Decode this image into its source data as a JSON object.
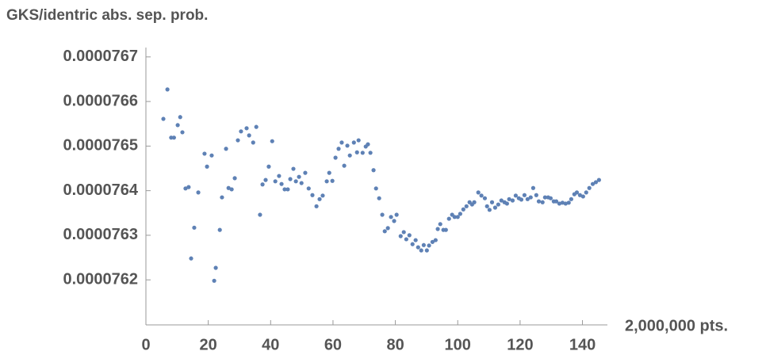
{
  "chart_data": {
    "type": "scatter",
    "title": "GKS/identric abs. sep. prob.",
    "x_label": "2,000,000 pts.",
    "color": "#5e81b5",
    "xlim": [
      0,
      148
    ],
    "xticks": [
      0,
      20,
      40,
      60,
      80,
      100,
      120,
      140
    ],
    "ylim": [
      7.6099e-05,
      7.6721e-05
    ],
    "yticks": [
      {
        "value": 7.62e-05,
        "label": "0.0000762"
      },
      {
        "value": 7.63e-05,
        "label": "0.0000763"
      },
      {
        "value": 7.64e-05,
        "label": "0.0000764"
      },
      {
        "value": 7.65e-05,
        "label": "0.0000765"
      },
      {
        "value": 7.66e-05,
        "label": "0.0000766"
      },
      {
        "value": 7.67e-05,
        "label": "0.0000767"
      }
    ],
    "x": [
      5.6,
      6.9,
      8.1,
      9,
      10.2,
      11,
      11.7,
      12.7,
      13.7,
      14.5,
      15.5,
      16.8,
      18.8,
      19.6,
      21.1,
      21.9,
      22.4,
      23.7,
      24.4,
      25.7,
      26.5,
      27.5,
      28.5,
      29.5,
      30.5,
      32.3,
      33.1,
      34.4,
      35.4,
      36.6,
      37.4,
      38.4,
      39.4,
      40.5,
      41.5,
      42.7,
      43.5,
      44.5,
      45.5,
      46.3,
      47.3,
      48.1,
      49.1,
      49.9,
      51.1,
      52.2,
      53.4,
      54.7,
      55.7,
      56.7,
      58,
      58.8,
      59.8,
      60.8,
      61.8,
      62.8,
      63.6,
      64.6,
      65.4,
      66.7,
      67.7,
      68.2,
      69.5,
      70.5,
      71.2,
      72,
      73,
      73.8,
      74.8,
      75.8,
      76.6,
      77.6,
      78.6,
      79.6,
      80.4,
      81.7,
      82.7,
      83.5,
      84.5,
      85.5,
      86.5,
      87.3,
      88.3,
      89.1,
      90.1,
      90.8,
      91.9,
      92.9,
      93.6,
      94.4,
      95.4,
      96.2,
      97.2,
      98.2,
      99,
      100,
      100.8,
      101.8,
      102.8,
      103.8,
      104.6,
      105.3,
      106.6,
      107.6,
      108.7,
      109.4,
      110.2,
      111,
      112,
      113,
      114,
      115,
      115.8,
      116.5,
      117.6,
      118.6,
      119.6,
      120.4,
      121.4,
      122.4,
      123.4,
      124.2,
      125.2,
      126,
      127.2,
      128,
      129,
      129.8,
      130.8,
      131.6,
      132.6,
      133.6,
      134.6,
      135.6,
      136.4,
      137.4,
      138.2,
      139.2,
      140.2,
      141.2,
      142.2,
      143.3,
      144.3,
      145.3
    ],
    "values": [
      7.6561e-05,
      7.6627e-05,
      7.6519e-05,
      7.6519e-05,
      7.6547e-05,
      7.6565e-05,
      7.6531e-05,
      7.6405e-05,
      7.6408e-05,
      7.6248e-05,
      7.6317e-05,
      7.6396e-05,
      7.6483e-05,
      7.6454e-05,
      7.6479e-05,
      7.6198e-05,
      7.6227e-05,
      7.6312e-05,
      7.6385e-05,
      7.6494e-05,
      7.6406e-05,
      7.6403e-05,
      7.6428e-05,
      7.6513e-05,
      7.6533e-05,
      7.654e-05,
      7.6524e-05,
      7.6508e-05,
      7.6543e-05,
      7.6346e-05,
      7.6414e-05,
      7.6424e-05,
      7.6454e-05,
      7.6511e-05,
      7.6421e-05,
      7.6433e-05,
      7.6415e-05,
      7.6403e-05,
      7.6403e-05,
      7.6426e-05,
      7.6449e-05,
      7.6421e-05,
      7.6431e-05,
      7.6417e-05,
      7.644e-05,
      7.6405e-05,
      7.639e-05,
      7.6365e-05,
      7.6381e-05,
      7.6389e-05,
      7.6421e-05,
      7.644e-05,
      7.6422e-05,
      7.6474e-05,
      7.6494e-05,
      7.6508e-05,
      7.6456e-05,
      7.6501e-05,
      7.6479e-05,
      7.6508e-05,
      7.6486e-05,
      7.6513e-05,
      7.6485e-05,
      7.6499e-05,
      7.6504e-05,
      7.6485e-05,
      7.6446e-05,
      7.6405e-05,
      7.6383e-05,
      7.6346e-05,
      7.6309e-05,
      7.6316e-05,
      7.6341e-05,
      7.6332e-05,
      7.6346e-05,
      7.6298e-05,
      7.6307e-05,
      7.6291e-05,
      7.63e-05,
      7.628e-05,
      7.6289e-05,
      7.6273e-05,
      7.6266e-05,
      7.6278e-05,
      7.6266e-05,
      7.6277e-05,
      7.6285e-05,
      7.6289e-05,
      7.6314e-05,
      7.6325e-05,
      7.6312e-05,
      7.6312e-05,
      7.6337e-05,
      7.6346e-05,
      7.6341e-05,
      7.6341e-05,
      7.6348e-05,
      7.6358e-05,
      7.6365e-05,
      7.6374e-05,
      7.6369e-05,
      7.6374e-05,
      7.6396e-05,
      7.6389e-05,
      7.6383e-05,
      7.6365e-05,
      7.6357e-05,
      7.6374e-05,
      7.6362e-05,
      7.6369e-05,
      7.6378e-05,
      7.6374e-05,
      7.6371e-05,
      7.6381e-05,
      7.6378e-05,
      7.6389e-05,
      7.6383e-05,
      7.638e-05,
      7.639e-05,
      7.6381e-05,
      7.6385e-05,
      7.6406e-05,
      7.639e-05,
      7.6376e-05,
      7.6374e-05,
      7.6385e-05,
      7.6385e-05,
      7.6383e-05,
      7.6376e-05,
      7.6376e-05,
      7.6371e-05,
      7.6373e-05,
      7.6371e-05,
      7.6373e-05,
      7.6381e-05,
      7.6392e-05,
      7.6396e-05,
      7.639e-05,
      7.6387e-05,
      7.6396e-05,
      7.6406e-05,
      7.6415e-05,
      7.6419e-05,
      7.6424e-05
    ]
  }
}
